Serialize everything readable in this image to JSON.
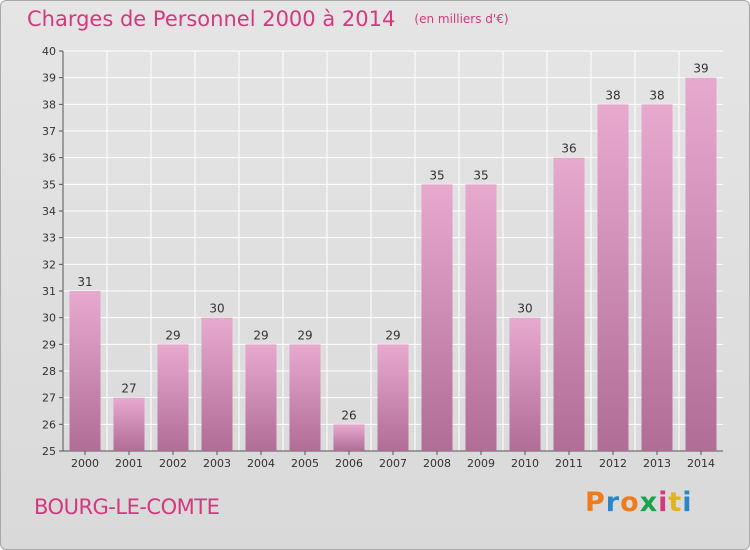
{
  "header": {
    "title": "Charges de Personnel 2000 à 2014",
    "unit": "(en milliers d'€)"
  },
  "footer": {
    "place": "BOURG-LE-COMTE",
    "logo": "Proxiti"
  },
  "colors": {
    "title": "#d4387f",
    "bar_top": "#e8a9cf",
    "bar_bottom": "#b06d96",
    "grid": "#ffffff"
  },
  "chart_data": {
    "type": "bar",
    "title": "Charges de Personnel 2000 à 2014",
    "subtitle": "(en milliers d'€)",
    "xlabel": "",
    "ylabel": "",
    "categories": [
      "2000",
      "2001",
      "2002",
      "2003",
      "2004",
      "2005",
      "2006",
      "2007",
      "2008",
      "2009",
      "2010",
      "2011",
      "2012",
      "2013",
      "2014"
    ],
    "values": [
      31,
      27,
      29,
      30,
      29,
      29,
      26,
      29,
      35,
      35,
      30,
      36,
      38,
      38,
      39
    ],
    "ylim": [
      25,
      40
    ],
    "yticks": [
      25,
      26,
      27,
      28,
      29,
      30,
      31,
      32,
      33,
      34,
      35,
      36,
      37,
      38,
      39,
      40
    ],
    "grid": true,
    "data_labels": true
  }
}
